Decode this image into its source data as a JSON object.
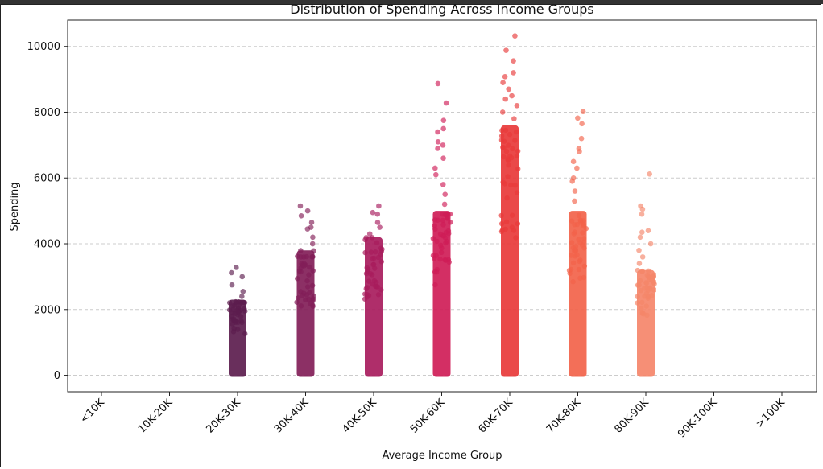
{
  "chart_data": {
    "type": "scatter",
    "subtype": "strip",
    "title": "Distribution of Spending Across Income Groups",
    "xlabel": "Average Income Group",
    "ylabel": "Spending",
    "categories": [
      "<10K",
      "10K-20K",
      "20K-30K",
      "30K-40K",
      "40K-50K",
      "50K-60K",
      "60K-70K",
      "70K-80K",
      "80K-90K",
      "90K-100K",
      ">100K"
    ],
    "ylim": [
      -500,
      10800
    ],
    "yticks": [
      0,
      2000,
      4000,
      6000,
      8000,
      10000
    ],
    "ytick_labels": [
      "0",
      "2000",
      "4000",
      "6000",
      "8000",
      "10000"
    ],
    "grid": "y dashed",
    "series": [
      {
        "category": "<10K",
        "color": "#4a1a4e",
        "dense_max": null,
        "outliers": []
      },
      {
        "category": "10K-20K",
        "color": "#4a1a4e",
        "dense_max": null,
        "outliers": []
      },
      {
        "category": "20K-30K",
        "color": "#5c1d4e",
        "dense_max": 2300,
        "outliers": [
          2400,
          2550,
          2750,
          3000,
          3120,
          3280
        ]
      },
      {
        "category": "30K-40K",
        "color": "#821e58",
        "dense_max": 3800,
        "outliers": [
          4000,
          4200,
          4450,
          4500,
          4650,
          4850,
          5000,
          5150
        ]
      },
      {
        "category": "40K-50K",
        "color": "#a81c5d",
        "dense_max": 4200,
        "outliers": [
          4300,
          4500,
          4650,
          4900,
          4950,
          5150
        ]
      },
      {
        "category": "50K-60K",
        "color": "#cf1d57",
        "dense_max": 5000,
        "outliers": [
          5200,
          5500,
          5800,
          6100,
          6300,
          6600,
          6900,
          7000,
          7100,
          7400,
          7500,
          7750,
          8280,
          8870
        ]
      },
      {
        "category": "60K-70K",
        "color": "#e83a3a",
        "dense_max": 7600,
        "outliers": [
          7800,
          8000,
          8200,
          8400,
          8500,
          8700,
          8900,
          9080,
          9200,
          9560,
          9880,
          10320
        ]
      },
      {
        "category": "70K-80K",
        "color": "#f2634a",
        "dense_max": 5000,
        "outliers": [
          5300,
          5600,
          5900,
          6000,
          6300,
          6500,
          6800,
          6900,
          7200,
          7650,
          7820,
          8020
        ]
      },
      {
        "category": "80K-90K",
        "color": "#f5866a",
        "dense_max": 3200,
        "outliers": [
          3400,
          3600,
          3800,
          4000,
          4200,
          4350,
          4400,
          4900,
          5050,
          5150,
          6120
        ]
      },
      {
        "category": "90K-100K",
        "color": "#f5a98a",
        "dense_max": null,
        "outliers": []
      },
      {
        "category": ">100K",
        "color": "#f5a98a",
        "dense_max": null,
        "outliers": []
      }
    ]
  }
}
